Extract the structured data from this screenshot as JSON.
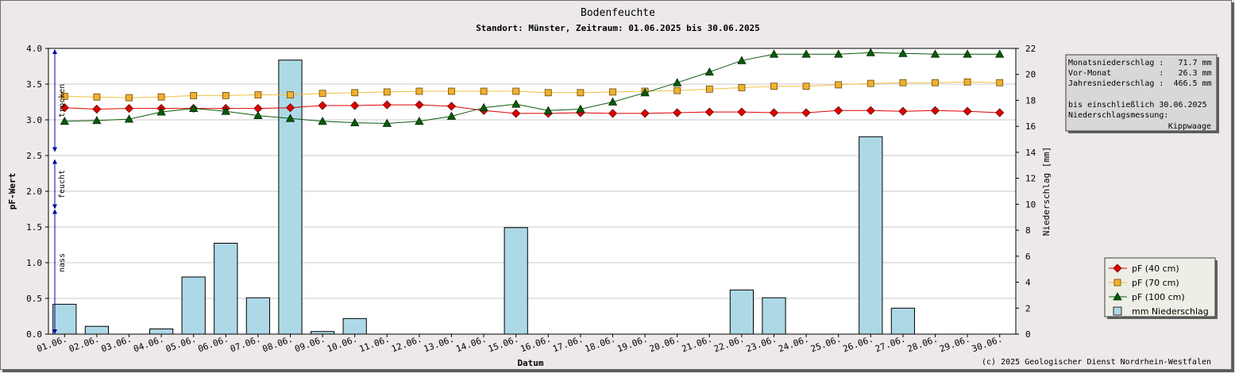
{
  "chart_data": {
    "type": "line",
    "title": "Bodenfeuchte",
    "subtitle": "Standort: Münster, Zeitraum: 01.06.2025 bis 30.06.2025",
    "xlabel": "Datum",
    "ylabel": "pF-Wert",
    "y2label": "Niederschlag [mm]",
    "categories": [
      "01.06.",
      "02.06.",
      "03.06.",
      "04.06.",
      "05.06.",
      "06.06.",
      "07.06.",
      "08.06.",
      "09.06.",
      "10.06.",
      "11.06.",
      "12.06.",
      "13.06.",
      "14.06.",
      "15.06.",
      "16.06.",
      "17.06.",
      "18.06.",
      "19.06.",
      "20.06.",
      "21.06.",
      "22.06.",
      "23.06.",
      "24.06.",
      "25.06.",
      "26.06.",
      "27.06.",
      "28.06.",
      "29.06.",
      "30.06."
    ],
    "ylim": [
      0,
      4.0
    ],
    "y2lim": [
      0,
      22
    ],
    "yticks": [
      "0.0",
      "0.5",
      "1.0",
      "1.5",
      "2.0",
      "2.5",
      "3.0",
      "3.5",
      "4.0"
    ],
    "y2ticks": [
      "0",
      "2",
      "4",
      "6",
      "8",
      "10",
      "12",
      "14",
      "16",
      "18",
      "20",
      "22"
    ],
    "grid": true,
    "legend_position": "bottom-right",
    "zones": [
      {
        "label": "trocken",
        "from": 2.55,
        "to": 4.0
      },
      {
        "label": "feucht",
        "from": 1.75,
        "to": 2.45
      },
      {
        "label": "nass",
        "from": 0.0,
        "to": 1.75
      }
    ],
    "series": [
      {
        "name": "pF (40 cm)",
        "type": "line",
        "axis": "left",
        "color": "#e00000",
        "marker": "diamond",
        "values": [
          3.17,
          3.15,
          3.16,
          3.16,
          3.16,
          3.16,
          3.16,
          3.17,
          3.2,
          3.2,
          3.21,
          3.21,
          3.19,
          3.13,
          3.09,
          3.09,
          3.1,
          3.09,
          3.09,
          3.1,
          3.11,
          3.11,
          3.1,
          3.1,
          3.13,
          3.13,
          3.12,
          3.13,
          3.12,
          3.1
        ]
      },
      {
        "name": "pF (70 cm)",
        "type": "line",
        "axis": "left",
        "color": "#f0b030",
        "marker": "square",
        "values": [
          3.33,
          3.32,
          3.31,
          3.32,
          3.34,
          3.34,
          3.35,
          3.35,
          3.37,
          3.38,
          3.39,
          3.4,
          3.4,
          3.4,
          3.4,
          3.38,
          3.38,
          3.39,
          3.4,
          3.41,
          3.43,
          3.45,
          3.47,
          3.47,
          3.49,
          3.51,
          3.52,
          3.52,
          3.53,
          3.52
        ]
      },
      {
        "name": "pF (100 cm)",
        "type": "line",
        "axis": "left",
        "color": "#0a5a0a",
        "marker": "triangle",
        "values": [
          2.98,
          2.99,
          3.01,
          3.11,
          3.16,
          3.12,
          3.06,
          3.02,
          2.98,
          2.96,
          2.95,
          2.98,
          3.05,
          3.17,
          3.22,
          3.13,
          3.15,
          3.25,
          3.38,
          3.52,
          3.67,
          3.83,
          3.92,
          3.92,
          3.92,
          3.94,
          3.93,
          3.92,
          3.92,
          3.92
        ]
      },
      {
        "name": "mm  Niederschlag",
        "type": "bar",
        "axis": "right",
        "color": "#add8e6",
        "values": [
          2.3,
          0.6,
          0,
          0.4,
          4.4,
          7.0,
          2.8,
          21.1,
          0.2,
          1.2,
          0,
          0,
          0,
          0,
          8.2,
          0,
          0,
          0,
          0,
          0,
          0,
          3.4,
          2.8,
          0,
          0,
          15.2,
          2.0,
          0,
          0,
          0
        ]
      }
    ]
  },
  "info_box": [
    "Monatsniederschlag :   71.7 mm",
    "Vor-Monat          :   26.3 mm",
    "Jahresniederschlag :  466.5 mm",
    "",
    "bis einschließlich 30.06.2025",
    "Niederschlagsmessung:",
    "Kippwaage"
  ],
  "copyright": "(c) 2025 Geologischer Dienst Nordrhein-Westfalen"
}
